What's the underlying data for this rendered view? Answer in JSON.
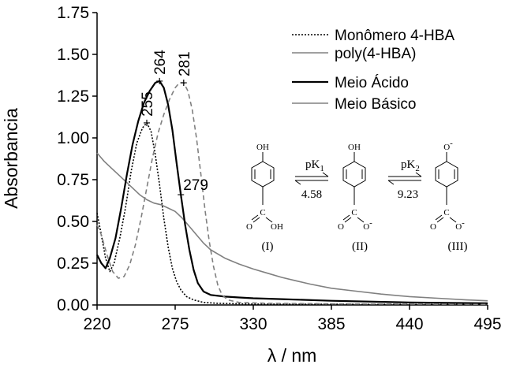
{
  "chart_data": {
    "type": "line",
    "title": "",
    "xlabel": "λ / nm",
    "ylabel": "Absorbancia",
    "xlim": [
      220,
      495
    ],
    "ylim": [
      0,
      1.75
    ],
    "xticks": [
      220,
      275,
      330,
      385,
      440,
      495
    ],
    "xtick_labels": [
      "220",
      "275",
      "330",
      "385",
      "440",
      "495"
    ],
    "yticks": [
      0,
      0.25,
      0.5,
      0.75,
      1.0,
      1.25,
      1.5,
      1.75
    ],
    "ytick_labels": [
      "0.00",
      "0.25",
      "0.50",
      "0.75",
      "1.00",
      "1.25",
      "1.50",
      "1.75"
    ],
    "legend_position": "top-right",
    "series": [
      {
        "name": "Monômero 4-HBA",
        "color": "#000000",
        "style": "dotted",
        "points": [
          [
            220,
            0.55
          ],
          [
            223,
            0.42
          ],
          [
            226,
            0.28
          ],
          [
            229,
            0.2
          ],
          [
            232,
            0.25
          ],
          [
            236,
            0.4
          ],
          [
            240,
            0.58
          ],
          [
            244,
            0.8
          ],
          [
            248,
            0.97
          ],
          [
            252,
            1.06
          ],
          [
            255,
            1.09
          ],
          [
            258,
            1.04
          ],
          [
            261,
            0.9
          ],
          [
            264,
            0.72
          ],
          [
            267,
            0.52
          ],
          [
            270,
            0.35
          ],
          [
            273,
            0.22
          ],
          [
            276,
            0.14
          ],
          [
            279,
            0.09
          ],
          [
            283,
            0.05
          ],
          [
            288,
            0.03
          ],
          [
            295,
            0.015
          ],
          [
            305,
            0.01
          ],
          [
            330,
            0.005
          ],
          [
            495,
            0.003
          ]
        ]
      },
      {
        "name": "poly(4-HBA)",
        "color": "#808080",
        "style": "solid",
        "points": [
          [
            220,
            0.91
          ],
          [
            225,
            0.86
          ],
          [
            230,
            0.82
          ],
          [
            235,
            0.78
          ],
          [
            240,
            0.74
          ],
          [
            245,
            0.7
          ],
          [
            250,
            0.66
          ],
          [
            255,
            0.63
          ],
          [
            260,
            0.61
          ],
          [
            265,
            0.6
          ],
          [
            270,
            0.58
          ],
          [
            275,
            0.56
          ],
          [
            280,
            0.52
          ],
          [
            285,
            0.47
          ],
          [
            290,
            0.42
          ],
          [
            295,
            0.37
          ],
          [
            300,
            0.33
          ],
          [
            310,
            0.28
          ],
          [
            320,
            0.245
          ],
          [
            330,
            0.215
          ],
          [
            340,
            0.19
          ],
          [
            350,
            0.165
          ],
          [
            360,
            0.145
          ],
          [
            370,
            0.125
          ],
          [
            385,
            0.1
          ],
          [
            400,
            0.085
          ],
          [
            420,
            0.065
          ],
          [
            440,
            0.05
          ],
          [
            460,
            0.04
          ],
          [
            480,
            0.03
          ],
          [
            495,
            0.025
          ]
        ]
      },
      {
        "name": "Meio Ácido",
        "color": "#000000",
        "style": "solid",
        "points": [
          [
            220,
            0.3
          ],
          [
            223,
            0.25
          ],
          [
            226,
            0.22
          ],
          [
            229,
            0.28
          ],
          [
            233,
            0.4
          ],
          [
            237,
            0.58
          ],
          [
            241,
            0.78
          ],
          [
            245,
            0.96
          ],
          [
            249,
            1.1
          ],
          [
            253,
            1.21
          ],
          [
            257,
            1.28
          ],
          [
            261,
            1.33
          ],
          [
            264,
            1.34
          ],
          [
            267,
            1.3
          ],
          [
            270,
            1.2
          ],
          [
            273,
            1.05
          ],
          [
            276,
            0.85
          ],
          [
            279,
            0.66
          ],
          [
            282,
            0.48
          ],
          [
            285,
            0.33
          ],
          [
            288,
            0.21
          ],
          [
            291,
            0.13
          ],
          [
            295,
            0.08
          ],
          [
            300,
            0.06
          ],
          [
            310,
            0.05
          ],
          [
            320,
            0.045
          ],
          [
            330,
            0.04
          ],
          [
            350,
            0.035
          ],
          [
            385,
            0.025
          ],
          [
            440,
            0.015
          ],
          [
            495,
            0.01
          ]
        ]
      },
      {
        "name": "Meio Básico",
        "color": "#808080",
        "style": "dashed",
        "points": [
          [
            220,
            0.48
          ],
          [
            223,
            0.42
          ],
          [
            227,
            0.3
          ],
          [
            231,
            0.2
          ],
          [
            235,
            0.16
          ],
          [
            239,
            0.17
          ],
          [
            243,
            0.24
          ],
          [
            247,
            0.36
          ],
          [
            251,
            0.52
          ],
          [
            255,
            0.7
          ],
          [
            259,
            0.88
          ],
          [
            263,
            1.03
          ],
          [
            267,
            1.14
          ],
          [
            271,
            1.23
          ],
          [
            275,
            1.3
          ],
          [
            278,
            1.33
          ],
          [
            281,
            1.33
          ],
          [
            284,
            1.28
          ],
          [
            287,
            1.17
          ],
          [
            290,
            1.0
          ],
          [
            293,
            0.79
          ],
          [
            296,
            0.57
          ],
          [
            299,
            0.38
          ],
          [
            302,
            0.23
          ],
          [
            305,
            0.12
          ],
          [
            308,
            0.06
          ],
          [
            312,
            0.03
          ],
          [
            320,
            0.015
          ],
          [
            340,
            0.01
          ],
          [
            400,
            0.006
          ],
          [
            495,
            0.004
          ]
        ]
      }
    ],
    "annotations": [
      {
        "label": "264",
        "x": 264,
        "y": 1.34
      },
      {
        "label": "281",
        "x": 281,
        "y": 1.33
      },
      {
        "label": "255",
        "x": 255,
        "y": 1.09
      },
      {
        "label": "279",
        "x": 279,
        "y": 0.66
      }
    ],
    "scheme": {
      "species": [
        "(I)",
        "(II)",
        "(III)"
      ],
      "oh_label": "OH",
      "o_minus_label": "O",
      "minus_sign": "-",
      "carbonyl_o": "O",
      "c_label": "C",
      "acid_oh": "OH",
      "pk1_base": "pK",
      "pk1_sub": "1",
      "pk1_value": "4.58",
      "pk2_base": "pK",
      "pk2_sub": "2",
      "pk2_value": "9.23"
    }
  }
}
